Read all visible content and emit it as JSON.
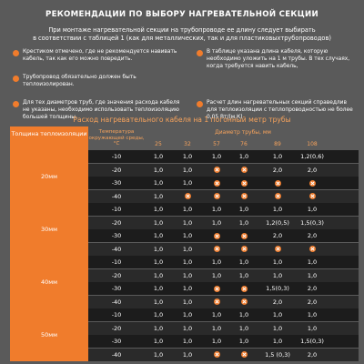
{
  "title": "РЕКОМЕНДАЦИИ ПО ВЫБОРУ НАГРЕВАТЕЛЬНОЙ СЕКЦИИ",
  "intro": [
    "При монтаже нагревательной секции на трубопроводе ее длину следует выбирать",
    "в соответствии с таблицей 1 (как для металлических, так и для пластиковыхтрубопроводов)"
  ],
  "notes": [
    {
      "text": "Крестиком отмечено, где не рекомендуется навивать кабель, так как его можно повредить.",
      "side": "left",
      "top": 2
    },
    {
      "text": "В таблице указана длина кабеля, которую необходимо уложить на 1 м трубы. В тех случаях, когда требуется навить кабель,",
      "side": "right",
      "top": 2
    },
    {
      "text": "Трубопровод обязательно должен быть теплоизолирован.",
      "side": "left",
      "top": 30
    },
    {
      "text": "Расчет длин нагревательных секций справедлив для теплоизоляции с теплопроводностью не более 0,05 Вт/(м.К)",
      "side": "right",
      "top": 58
    },
    {
      "text": "Для тех диаметров труб, где значения расхода кабеля не указаны, необходимо использовать теплоизоляцию большей толщины.",
      "side": "left",
      "top": 58
    }
  ],
  "subtitle": "Расход нагревательного кабеля на 1 погонный метр трубы",
  "table": {
    "left_header": "Толщина теплоизоляции",
    "temp_header": "Температура окружающей среды, °С",
    "diam_header": "Диаметр трубы, мм",
    "diameters": [
      "25",
      "32",
      "57",
      "76",
      "89",
      "108"
    ],
    "groups": [
      {
        "label": "20мм",
        "rows": [
          {
            "temp": "-10",
            "values": [
              "1,0",
              "1,0",
              "1,0",
              "1,0",
              "1,0",
              "1,2(0,6)"
            ]
          },
          {
            "temp": "-20",
            "values": [
              "1,0",
              "1,0",
              "x",
              "x",
              "2,0",
              "2,0"
            ]
          },
          {
            "temp": "-30",
            "values": [
              "1,0",
              "1,0",
              "x",
              "x",
              "x",
              "x"
            ]
          },
          {
            "temp": "-40",
            "values": [
              "1,0",
              "x",
              "x",
              "x",
              "x",
              "x"
            ]
          }
        ]
      },
      {
        "label": "30мм",
        "rows": [
          {
            "temp": "-10",
            "values": [
              "1,0",
              "1,0",
              "1,0",
              "1,0",
              "1,0",
              "1,0"
            ]
          },
          {
            "temp": "-20",
            "values": [
              "1,0",
              "1,0",
              "1,0",
              "1,0",
              "1,2(0,5)",
              "1,5(0,3)"
            ]
          },
          {
            "temp": "-30",
            "values": [
              "1,0",
              "1,0",
              "x",
              "x",
              "2,0",
              "2,0"
            ]
          },
          {
            "temp": "-40",
            "values": [
              "1,0",
              "1,0",
              "x",
              "x",
              "x",
              "x"
            ]
          }
        ]
      },
      {
        "label": "40мм",
        "rows": [
          {
            "temp": "-10",
            "values": [
              "1,0",
              "1,0",
              "1,0",
              "1,0",
              "1,0",
              "1,0"
            ]
          },
          {
            "temp": "-20",
            "values": [
              "1,0",
              "1,0",
              "1,0",
              "1,0",
              "1,0",
              "1,0"
            ]
          },
          {
            "temp": "-30",
            "values": [
              "1,0",
              "1,0",
              "x",
              "x",
              "1,5(0,3)",
              "2,0"
            ]
          },
          {
            "temp": "-40",
            "values": [
              "1,0",
              "1,0",
              "x",
              "x",
              "2,0",
              "2,0"
            ]
          }
        ]
      },
      {
        "label": "50мм",
        "rows": [
          {
            "temp": "-10",
            "values": [
              "1,0",
              "1,0",
              "1,0",
              "1,0",
              "1,0",
              "1,0"
            ]
          },
          {
            "temp": "-20",
            "values": [
              "1,0",
              "1,0",
              "1,0",
              "1,0",
              "1,0",
              "1,0"
            ]
          },
          {
            "temp": "-30",
            "values": [
              "1,0",
              "1,0",
              "1,0",
              "1,0",
              "1,0",
              "1,5(0,3)"
            ]
          },
          {
            "temp": "-40",
            "values": [
              "1,0",
              "1,0",
              "x",
              "x",
              "1,5 (0,3)",
              "2,0"
            ]
          }
        ]
      }
    ]
  },
  "colors": {
    "accent": "#f07c2c",
    "background": "#5a5a5a",
    "row_dark": "#1c1c1c",
    "row_mid": "#2a2a2a"
  }
}
